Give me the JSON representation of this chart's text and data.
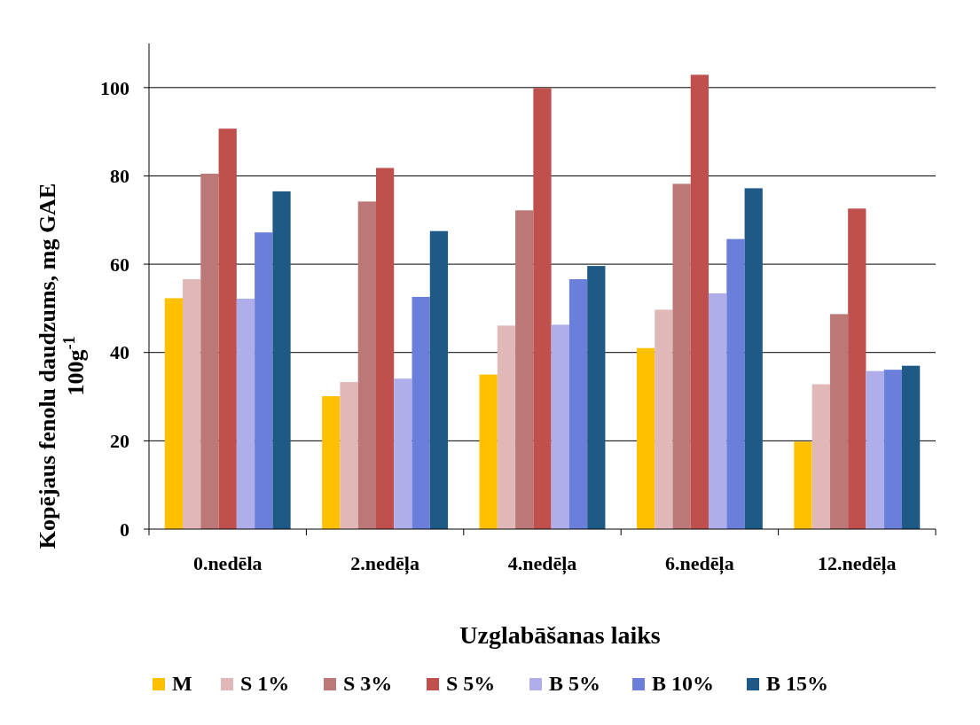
{
  "chart_data": {
    "type": "bar",
    "xlabel": "Uzglabāšanas laiks",
    "ylabel": "Kopējaus fenolu daudzums, mg  GAE 100g$^{-1}$",
    "categories": [
      "0.nedēla",
      "2.nedēļa",
      "4.nedēļa",
      "6.nedēļa",
      "12.nedēļa"
    ],
    "series": [
      {
        "name": "M",
        "color": "#ffc000",
        "values": [
          52.3,
          30.1,
          35.0,
          41.0,
          19.8
        ]
      },
      {
        "name": "S 1%",
        "color": "#dfb8b7",
        "values": [
          56.6,
          33.3,
          46.1,
          49.7,
          32.8
        ]
      },
      {
        "name": "S 3%",
        "color": "#bc7877",
        "values": [
          80.5,
          74.2,
          72.2,
          78.2,
          48.7
        ]
      },
      {
        "name": "S 5%",
        "color": "#c0504d",
        "values": [
          90.7,
          81.8,
          99.9,
          102.9,
          72.6
        ]
      },
      {
        "name": "B 5%",
        "color": "#b0aeea",
        "values": [
          52.2,
          34.1,
          46.3,
          53.4,
          35.8
        ]
      },
      {
        "name": "B 10%",
        "color": "#6a7fd9",
        "values": [
          67.2,
          52.6,
          56.6,
          65.7,
          36.1
        ]
      },
      {
        "name": "B 15%",
        "color": "#1f5a87",
        "values": [
          76.5,
          67.5,
          59.6,
          77.2,
          37.0
        ]
      }
    ],
    "ylim": [
      0,
      110
    ],
    "yticks": [
      0,
      20,
      40,
      60,
      80,
      100
    ],
    "grid": "y",
    "legend": "bottom"
  }
}
